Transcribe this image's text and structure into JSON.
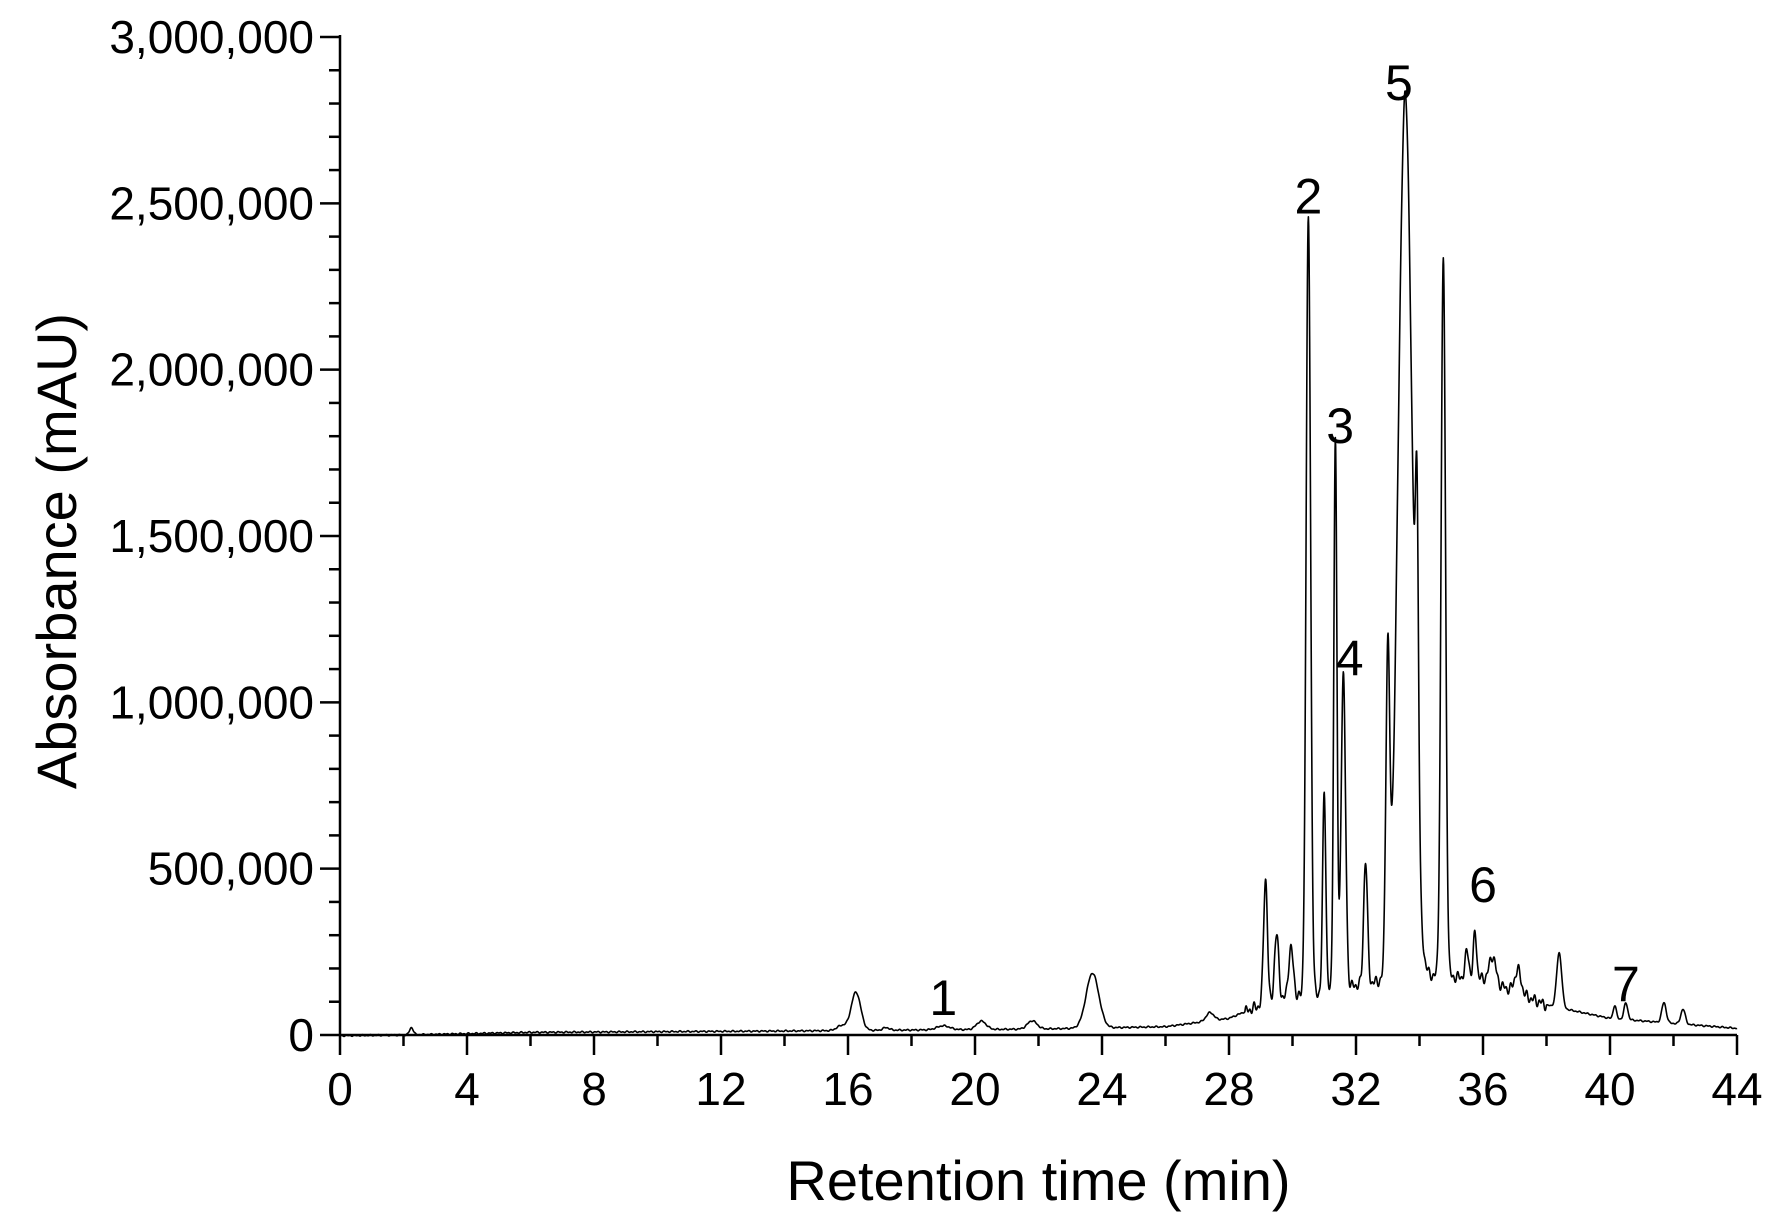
{
  "chart_data": {
    "type": "line",
    "title": "",
    "xlabel": "Retention time (min)",
    "ylabel": "Absorbance (mAU)",
    "xlim": [
      0,
      44
    ],
    "ylim": [
      0,
      3000000
    ],
    "x_ticks": [
      0,
      4,
      8,
      12,
      16,
      20,
      24,
      28,
      32,
      36,
      40,
      44
    ],
    "x_tick_labels": [
      "0",
      "4",
      "8",
      "12",
      "16",
      "20",
      "24",
      "28",
      "32",
      "36",
      "40",
      "44"
    ],
    "y_ticks": [
      0,
      500000,
      1000000,
      1500000,
      2000000,
      2500000,
      3000000
    ],
    "y_tick_labels": [
      "0",
      "500,000",
      "1,000,000",
      "1,500,000",
      "2,000,000",
      "2,500,000",
      "3,000,000"
    ],
    "grid": false,
    "legend": "none",
    "baseline": [
      [
        0,
        -2000
      ],
      [
        2,
        0
      ],
      [
        6,
        8000
      ],
      [
        10,
        10000
      ],
      [
        14,
        12000
      ],
      [
        18,
        15000
      ],
      [
        22,
        18000
      ],
      [
        26,
        25000
      ],
      [
        28,
        50000
      ],
      [
        29,
        90000
      ],
      [
        30,
        110000
      ],
      [
        32,
        150000
      ],
      [
        34,
        180000
      ],
      [
        36,
        170000
      ],
      [
        38,
        90000
      ],
      [
        40,
        50000
      ],
      [
        42,
        35000
      ],
      [
        44,
        20000
      ]
    ],
    "peaks": [
      {
        "x": 2.25,
        "y": 22000,
        "w": 0.06
      },
      {
        "x": 15.8,
        "y": 15000,
        "w": 0.15
      },
      {
        "x": 16.25,
        "y": 115000,
        "w": 0.15
      },
      {
        "x": 17.2,
        "y": 8000,
        "w": 0.1
      },
      {
        "x": 19.0,
        "y": 12000,
        "w": 0.2
      },
      {
        "x": 20.2,
        "y": 25000,
        "w": 0.15
      },
      {
        "x": 21.8,
        "y": 25000,
        "w": 0.15
      },
      {
        "x": 23.7,
        "y": 165000,
        "w": 0.2
      },
      {
        "x": 27.4,
        "y": 25000,
        "w": 0.12
      },
      {
        "x": 29.15,
        "y": 380000,
        "w": 0.06
      },
      {
        "x": 29.5,
        "y": 200000,
        "w": 0.07
      },
      {
        "x": 29.95,
        "y": 150000,
        "w": 0.08
      },
      {
        "x": 30.5,
        "y": 2340000,
        "w": 0.07
      },
      {
        "x": 31.0,
        "y": 600000,
        "w": 0.05
      },
      {
        "x": 31.35,
        "y": 1650000,
        "w": 0.05
      },
      {
        "x": 31.6,
        "y": 940000,
        "w": 0.07
      },
      {
        "x": 32.3,
        "y": 370000,
        "w": 0.06
      },
      {
        "x": 33.0,
        "y": 920000,
        "w": 0.06
      },
      {
        "x": 33.55,
        "y": 2650000,
        "w": 0.22
      },
      {
        "x": 33.92,
        "y": 900000,
        "w": 0.05
      },
      {
        "x": 34.75,
        "y": 2160000,
        "w": 0.07
      },
      {
        "x": 35.5,
        "y": 80000,
        "w": 0.06
      },
      {
        "x": 35.75,
        "y": 140000,
        "w": 0.05
      },
      {
        "x": 36.3,
        "y": 80000,
        "w": 0.1
      },
      {
        "x": 37.1,
        "y": 70000,
        "w": 0.1
      },
      {
        "x": 38.4,
        "y": 165000,
        "w": 0.08
      },
      {
        "x": 40.15,
        "y": 40000,
        "w": 0.05
      },
      {
        "x": 40.5,
        "y": 50000,
        "w": 0.06
      },
      {
        "x": 41.7,
        "y": 60000,
        "w": 0.07
      },
      {
        "x": 42.3,
        "y": 45000,
        "w": 0.07
      }
    ],
    "annotations": [
      {
        "text": "1",
        "x": 19.0,
        "y": 60000
      },
      {
        "text": "2",
        "x": 30.5,
        "y": 2470000
      },
      {
        "text": "3",
        "x": 31.5,
        "y": 1780000
      },
      {
        "text": "4",
        "x": 31.8,
        "y": 1080000
      },
      {
        "text": "5",
        "x": 33.35,
        "y": 2810000
      },
      {
        "text": "6",
        "x": 36.0,
        "y": 400000
      },
      {
        "text": "7",
        "x": 40.5,
        "y": 100000
      }
    ]
  }
}
